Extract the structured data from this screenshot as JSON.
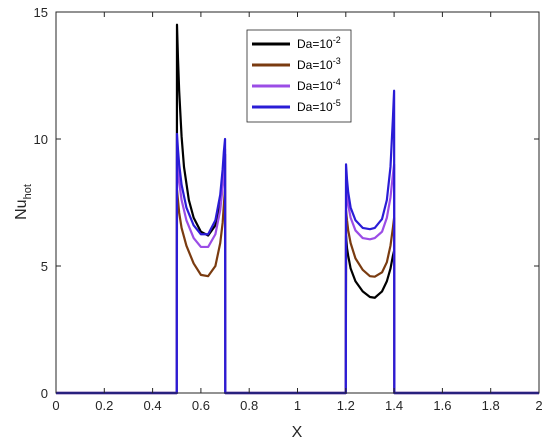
{
  "chart_data": {
    "type": "line",
    "xlabel": "X",
    "ylabel": {
      "base": "Nu",
      "sub": "hot"
    },
    "xlim": [
      0,
      2
    ],
    "ylim": [
      0,
      15
    ],
    "x_ticks": [
      0,
      0.2,
      0.4,
      0.6,
      0.8,
      1,
      1.2,
      1.4,
      1.6,
      1.8,
      2
    ],
    "x_tick_labels": [
      "0",
      "0.2",
      "0.4",
      "0.6",
      "0.8",
      "1",
      "1.2",
      "1.4",
      "1.6",
      "1.8",
      "2"
    ],
    "y_ticks": [
      0,
      5,
      10,
      15
    ],
    "y_tick_labels": [
      "0",
      "5",
      "10",
      "15"
    ],
    "grid": false,
    "legend_position": "top-right",
    "series": [
      {
        "name": {
          "base": "Da=10",
          "exp": "-2"
        },
        "color": "#000000",
        "x": [
          0,
          0.5,
          0.501,
          0.505,
          0.51,
          0.52,
          0.53,
          0.55,
          0.57,
          0.6,
          0.63,
          0.66,
          0.68,
          0.69,
          0.695,
          0.699,
          0.7,
          0.701,
          1.2,
          1.201,
          1.205,
          1.21,
          1.22,
          1.24,
          1.27,
          1.3,
          1.32,
          1.35,
          1.37,
          1.385,
          1.395,
          1.4,
          1.401,
          2
        ],
        "y": [
          0,
          0,
          14.5,
          13.2,
          11.9,
          10.1,
          8.9,
          7.6,
          6.9,
          6.35,
          6.2,
          6.6,
          7.4,
          8.2,
          8.8,
          9.3,
          9.4,
          0,
          0,
          6.2,
          5.7,
          5.4,
          4.9,
          4.4,
          4.0,
          3.78,
          3.75,
          4.0,
          4.4,
          4.9,
          5.4,
          5.6,
          0,
          0
        ]
      },
      {
        "name": {
          "base": "Da=10",
          "exp": "-3"
        },
        "color": "#7a3b10",
        "x": [
          0,
          0.5,
          0.501,
          0.505,
          0.51,
          0.52,
          0.54,
          0.57,
          0.6,
          0.63,
          0.66,
          0.68,
          0.69,
          0.695,
          0.699,
          0.7,
          0.701,
          1.2,
          1.201,
          1.205,
          1.21,
          1.22,
          1.24,
          1.27,
          1.3,
          1.32,
          1.35,
          1.37,
          1.385,
          1.395,
          1.4,
          1.401,
          2
        ],
        "y": [
          0,
          0,
          8.0,
          7.6,
          7.1,
          6.5,
          5.8,
          5.1,
          4.65,
          4.6,
          5.0,
          5.9,
          6.7,
          7.4,
          7.9,
          8.0,
          0,
          0,
          7.2,
          6.8,
          6.4,
          5.9,
          5.3,
          4.85,
          4.6,
          4.58,
          4.75,
          5.15,
          5.8,
          6.5,
          6.9,
          0,
          0
        ]
      },
      {
        "name": {
          "base": "Da=10",
          "exp": "-4"
        },
        "color": "#9b4de6",
        "x": [
          0,
          0.5,
          0.501,
          0.505,
          0.51,
          0.52,
          0.54,
          0.57,
          0.6,
          0.63,
          0.66,
          0.68,
          0.69,
          0.695,
          0.699,
          0.7,
          0.701,
          1.2,
          1.201,
          1.205,
          1.21,
          1.22,
          1.24,
          1.27,
          1.3,
          1.32,
          1.35,
          1.37,
          1.385,
          1.395,
          1.4,
          1.401,
          2
        ],
        "y": [
          0,
          0,
          9.3,
          8.8,
          8.3,
          7.6,
          6.8,
          6.1,
          5.75,
          5.75,
          6.25,
          7.2,
          8.1,
          8.8,
          9.4,
          9.6,
          0,
          0,
          8.4,
          7.9,
          7.4,
          6.9,
          6.4,
          6.1,
          6.05,
          6.1,
          6.35,
          6.9,
          7.7,
          8.6,
          9.0,
          0,
          0
        ]
      },
      {
        "name": {
          "base": "Da=10",
          "exp": "-5"
        },
        "color": "#2a1cd6",
        "x": [
          0,
          0.5,
          0.501,
          0.505,
          0.51,
          0.52,
          0.54,
          0.57,
          0.6,
          0.63,
          0.66,
          0.68,
          0.69,
          0.695,
          0.699,
          0.7,
          0.701,
          1.2,
          1.201,
          1.205,
          1.21,
          1.22,
          1.24,
          1.27,
          1.3,
          1.32,
          1.35,
          1.37,
          1.385,
          1.395,
          1.4,
          1.401,
          2
        ],
        "y": [
          0,
          0,
          10.2,
          9.6,
          9.0,
          8.2,
          7.3,
          6.6,
          6.25,
          6.25,
          6.8,
          7.8,
          8.8,
          9.5,
          9.9,
          10.0,
          0,
          0,
          9.0,
          8.4,
          7.9,
          7.3,
          6.8,
          6.5,
          6.45,
          6.5,
          6.85,
          7.6,
          8.9,
          10.8,
          11.9,
          0,
          0
        ]
      }
    ]
  }
}
